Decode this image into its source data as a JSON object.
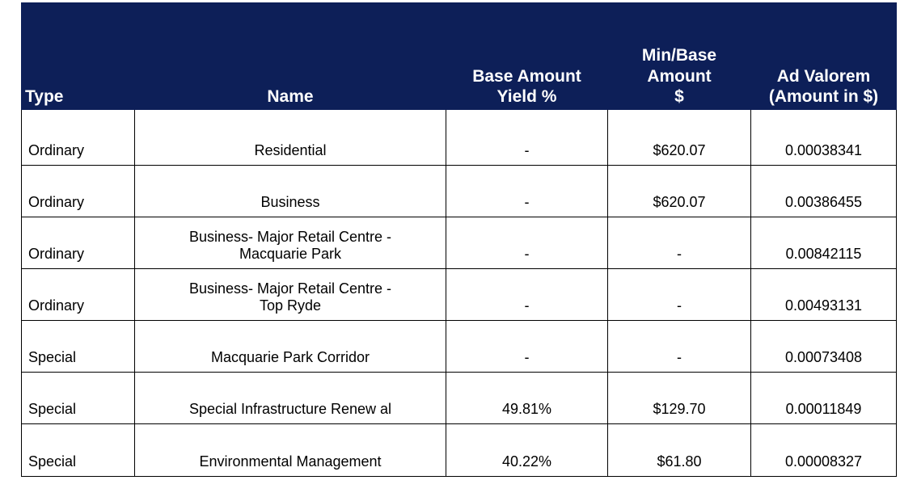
{
  "table": {
    "headers": {
      "type": "Type",
      "name": "Name",
      "base_line1": "Base Amount",
      "base_line2": "Yield %",
      "min_line1": "Min/Base",
      "min_line2": "Amount",
      "min_line3": "$",
      "ad_line1": "Ad Valorem",
      "ad_line2": "(Amount in $)"
    },
    "rows": [
      {
        "type": "Ordinary",
        "name_line1": "Residential",
        "name_line2": "",
        "base_yield": "-",
        "min_base": "$620.07",
        "ad_valorem": "0.00038341"
      },
      {
        "type": "Ordinary",
        "name_line1": "Business",
        "name_line2": "",
        "base_yield": "-",
        "min_base": "$620.07",
        "ad_valorem": "0.00386455"
      },
      {
        "type": "Ordinary",
        "name_line1": "Business- Major Retail Centre -",
        "name_line2": "Macquarie Park",
        "base_yield": "-",
        "min_base": "-",
        "ad_valorem": "0.00842115"
      },
      {
        "type": "Ordinary",
        "name_line1": "Business- Major Retail Centre -",
        "name_line2": "Top Ryde",
        "base_yield": "-",
        "min_base": "-",
        "ad_valorem": "0.00493131"
      },
      {
        "type": "Special",
        "name_line1": "Macquarie Park Corridor",
        "name_line2": "",
        "base_yield": "-",
        "min_base": "-",
        "ad_valorem": "0.00073408"
      },
      {
        "type": "Special",
        "name_line1": "Special Infrastructure Renew al",
        "name_line2": "",
        "base_yield": "49.81%",
        "min_base": "$129.70",
        "ad_valorem": "0.00011849"
      },
      {
        "type": "Special",
        "name_line1": "Environmental Management",
        "name_line2": "",
        "base_yield": "40.22%",
        "min_base": "$61.80",
        "ad_valorem": "0.00008327"
      }
    ]
  }
}
